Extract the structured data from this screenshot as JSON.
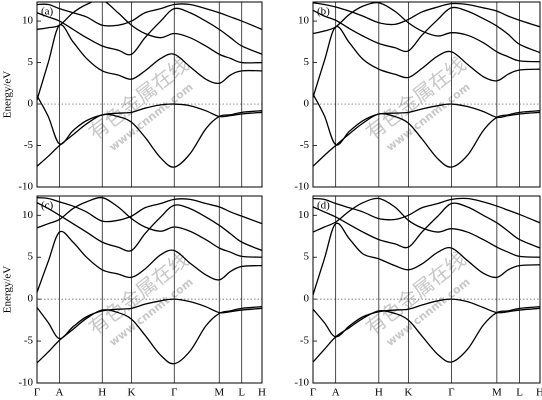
{
  "watermark": [
    "有色金属在线",
    "www.cnnmt.com"
  ],
  "chart_data": [
    {
      "type": "line",
      "title": "(a)",
      "ylabel": "Energy/eV",
      "show_xtick_labels": false,
      "x": [
        0,
        0.05,
        0.1,
        0.16,
        0.22,
        0.29,
        0.36,
        0.42,
        0.48,
        0.55,
        0.61,
        0.68,
        0.75,
        0.81,
        0.86,
        0.91,
        1.0
      ],
      "xlim": [
        0,
        1
      ],
      "ylim": [
        -10,
        12.3
      ],
      "yticks": [
        -10,
        -5,
        0,
        5,
        10
      ],
      "zero_line": true,
      "xticks": [
        {
          "value": 0,
          "label": "Γ"
        },
        {
          "value": 0.1,
          "label": "A"
        },
        {
          "value": 0.29,
          "label": "H"
        },
        {
          "value": 0.42,
          "label": "K"
        },
        {
          "value": 0.61,
          "label": "Γ"
        },
        {
          "value": 0.81,
          "label": "M"
        },
        {
          "value": 0.91,
          "label": "L"
        },
        {
          "value": 1.0,
          "label": "H"
        }
      ],
      "series": [
        {
          "color": "#000000",
          "values": [
            -7.5,
            -6.3,
            -5,
            -3.7,
            -2.4,
            -1.3,
            -1.5,
            -2.2,
            -4,
            -6.5,
            -7.6,
            -6,
            -3,
            -1.5,
            -1.3,
            -1,
            -0.8
          ]
        },
        {
          "color": "#000000",
          "values": [
            1,
            -1.5,
            -4.8,
            -3.2,
            -2,
            -1.3,
            -1.1,
            -1,
            -0.5,
            -0.1,
            0,
            -0.2,
            -0.8,
            -1.5,
            -1.4,
            -1.2,
            -1
          ]
        },
        {
          "color": "#000000",
          "values": [
            0.5,
            5,
            9.5,
            7.5,
            5.5,
            4,
            3.5,
            3,
            4,
            5.5,
            6,
            4.5,
            3,
            2.5,
            3.5,
            4,
            4
          ]
        },
        {
          "color": "#000000",
          "values": [
            9,
            9.2,
            9.5,
            11,
            12,
            12.5,
            11,
            9.5,
            8.5,
            8,
            8.5,
            8,
            7,
            6,
            5.5,
            5,
            5
          ]
        },
        {
          "color": "#000000",
          "values": [
            11,
            10.5,
            10,
            9,
            8,
            7,
            6.5,
            6,
            8,
            10,
            11.5,
            11,
            10,
            9,
            8,
            7,
            6
          ]
        },
        {
          "color": "#000000",
          "values": [
            12,
            12,
            11.5,
            11,
            10.5,
            9.5,
            9.5,
            10,
            11,
            11.5,
            12,
            12,
            11.5,
            11,
            10.5,
            10,
            9
          ]
        }
      ]
    },
    {
      "type": "line",
      "title": "(b)",
      "show_xtick_labels": false,
      "x": [
        0,
        0.05,
        0.1,
        0.16,
        0.22,
        0.29,
        0.36,
        0.42,
        0.48,
        0.55,
        0.61,
        0.68,
        0.75,
        0.81,
        0.86,
        0.91,
        1.0
      ],
      "xlim": [
        0,
        1
      ],
      "ylim": [
        -10,
        12.3
      ],
      "yticks": [
        -10,
        -5,
        0,
        5,
        10
      ],
      "zero_line": true,
      "xticks": [
        {
          "value": 0,
          "label": "Γ"
        },
        {
          "value": 0.1,
          "label": "A"
        },
        {
          "value": 0.29,
          "label": "H"
        },
        {
          "value": 0.42,
          "label": "K"
        },
        {
          "value": 0.61,
          "label": "Γ"
        },
        {
          "value": 0.81,
          "label": "M"
        },
        {
          "value": 0.91,
          "label": "L"
        },
        {
          "value": 1.0,
          "label": "H"
        }
      ],
      "series": [
        {
          "color": "#000000",
          "values": [
            -7.5,
            -6.2,
            -5,
            -3.6,
            -2.3,
            -1.2,
            -1.5,
            -2.3,
            -4.2,
            -6.6,
            -7.6,
            -6.2,
            -3.2,
            -1.6,
            -1.3,
            -1,
            -0.8
          ]
        },
        {
          "color": "#000000",
          "values": [
            1.2,
            -1.4,
            -4.9,
            -3.3,
            -2,
            -1.2,
            -1.1,
            -1,
            -0.6,
            -0.2,
            0,
            -0.3,
            -0.9,
            -1.6,
            -1.4,
            -1.2,
            -1
          ]
        },
        {
          "color": "#000000",
          "values": [
            0.8,
            5.2,
            9.3,
            7.4,
            5.4,
            4.2,
            3.6,
            3.2,
            4.3,
            5.8,
            6.3,
            4.8,
            3.3,
            2.8,
            3.6,
            4.1,
            4.2
          ]
        },
        {
          "color": "#000000",
          "values": [
            8.5,
            8.8,
            9.3,
            10.8,
            11.8,
            12.2,
            11.2,
            9.8,
            8.8,
            8.2,
            8.6,
            8.3,
            7.4,
            6.3,
            5.7,
            5.2,
            5.1
          ]
        },
        {
          "color": "#000000",
          "values": [
            11.3,
            10.6,
            10.1,
            9.1,
            8.2,
            7.3,
            6.8,
            6.4,
            8.3,
            10.2,
            11.6,
            11.2,
            10.3,
            9.4,
            8.4,
            7.2,
            6.2
          ]
        },
        {
          "color": "#000000",
          "values": [
            12.2,
            12,
            11.7,
            11.2,
            10.6,
            9.8,
            9.6,
            10.2,
            11.1,
            11.7,
            12.1,
            12,
            11.6,
            11.2,
            10.6,
            10.1,
            9.3
          ]
        }
      ]
    },
    {
      "type": "line",
      "title": "(c)",
      "ylabel": "Energy/eV",
      "show_xtick_labels": true,
      "x": [
        0,
        0.05,
        0.1,
        0.16,
        0.22,
        0.29,
        0.36,
        0.42,
        0.48,
        0.55,
        0.61,
        0.68,
        0.75,
        0.81,
        0.86,
        0.91,
        1.0
      ],
      "xlim": [
        0,
        1
      ],
      "ylim": [
        -10,
        12.3
      ],
      "yticks": [
        -10,
        -5,
        0,
        5,
        10
      ],
      "zero_line": true,
      "xticks": [
        {
          "value": 0,
          "label": "Γ"
        },
        {
          "value": 0.1,
          "label": "A"
        },
        {
          "value": 0.29,
          "label": "H"
        },
        {
          "value": 0.42,
          "label": "K"
        },
        {
          "value": 0.61,
          "label": "Γ"
        },
        {
          "value": 0.81,
          "label": "M"
        },
        {
          "value": 0.91,
          "label": "L"
        },
        {
          "value": 1.0,
          "label": "H"
        }
      ],
      "series": [
        {
          "color": "#000000",
          "values": [
            -7.6,
            -6.3,
            -4.9,
            -3.6,
            -2.3,
            -1.3,
            -1.6,
            -2.4,
            -4.3,
            -6.7,
            -7.7,
            -6.2,
            -3.2,
            -1.7,
            -1.4,
            -1.1,
            -0.9
          ]
        },
        {
          "color": "#000000",
          "values": [
            -1,
            -2.8,
            -4.7,
            -3.3,
            -2.1,
            -1.4,
            -1.2,
            -1.1,
            -0.6,
            -0.2,
            0,
            -0.3,
            -0.9,
            -1.6,
            -1.5,
            -1.3,
            -1.1
          ]
        },
        {
          "color": "#000000",
          "values": [
            0.8,
            4.5,
            8,
            6.8,
            5,
            3.5,
            3,
            2.6,
            3.6,
            5.3,
            5.8,
            4.3,
            2.9,
            2.3,
            3.3,
            3.9,
            4
          ]
        },
        {
          "color": "#000000",
          "values": [
            8.5,
            9,
            9.5,
            10.8,
            11.6,
            12.1,
            11,
            9.6,
            8.6,
            8.1,
            8.6,
            8.1,
            7.1,
            6.1,
            5.6,
            5.1,
            5
          ]
        },
        {
          "color": "#000000",
          "values": [
            11.5,
            10.8,
            10,
            9,
            8,
            6.8,
            6.2,
            5.8,
            7.8,
            9.8,
            11.2,
            10.8,
            9.8,
            8.8,
            7.8,
            6.8,
            5.8
          ]
        },
        {
          "color": "#000000",
          "values": [
            12.1,
            12,
            11.6,
            11.1,
            10.4,
            9.3,
            9.4,
            9.9,
            10.9,
            11.4,
            11.9,
            11.9,
            11.4,
            11,
            10.4,
            9.9,
            9
          ]
        }
      ]
    },
    {
      "type": "line",
      "title": "(d)",
      "show_xtick_labels": true,
      "x": [
        0,
        0.05,
        0.1,
        0.16,
        0.22,
        0.29,
        0.36,
        0.42,
        0.48,
        0.55,
        0.61,
        0.68,
        0.75,
        0.81,
        0.86,
        0.91,
        1.0
      ],
      "xlim": [
        0,
        1
      ],
      "ylim": [
        -10,
        12.3
      ],
      "yticks": [
        -10,
        -5,
        0,
        5,
        10
      ],
      "zero_line": true,
      "xticks": [
        {
          "value": 0,
          "label": "Γ"
        },
        {
          "value": 0.1,
          "label": "A"
        },
        {
          "value": 0.29,
          "label": "H"
        },
        {
          "value": 0.42,
          "label": "K"
        },
        {
          "value": 0.61,
          "label": "Γ"
        },
        {
          "value": 0.81,
          "label": "M"
        },
        {
          "value": 0.91,
          "label": "L"
        },
        {
          "value": 1.0,
          "label": "H"
        }
      ],
      "series": [
        {
          "color": "#000000",
          "values": [
            -7.5,
            -6,
            -4.5,
            -3.4,
            -2.3,
            -1.4,
            -1.7,
            -2.5,
            -4.4,
            -6.6,
            -7.5,
            -6,
            -3.1,
            -1.6,
            -1.4,
            -1.1,
            -0.9
          ]
        },
        {
          "color": "#000000",
          "values": [
            -1.2,
            -2.8,
            -4.5,
            -3.2,
            -2.1,
            -1.5,
            -1.3,
            -1.2,
            -0.7,
            -0.2,
            0,
            -0.3,
            -1,
            -1.6,
            -1.5,
            -1.3,
            -1.1
          ]
        },
        {
          "color": "#000000",
          "values": [
            0.5,
            4.8,
            9,
            7.2,
            5.4,
            4.8,
            4,
            3.5,
            4.2,
            5.6,
            6.1,
            4.6,
            3.1,
            2.6,
            3.5,
            4,
            4.1
          ]
        },
        {
          "color": "#000000",
          "values": [
            8,
            8.6,
            9.2,
            10.5,
            11.5,
            12,
            11,
            9.4,
            8.5,
            8,
            8.4,
            8,
            7.1,
            6.2,
            5.6,
            5.1,
            5
          ]
        },
        {
          "color": "#000000",
          "values": [
            11,
            10.4,
            9.8,
            8.9,
            8,
            7.1,
            6.6,
            6.2,
            8,
            9.9,
            11.4,
            11,
            10,
            9.1,
            8.1,
            7.1,
            6.1
          ]
        },
        {
          "color": "#000000",
          "values": [
            12,
            11.9,
            11.4,
            10.9,
            10.4,
            9.6,
            9.5,
            10,
            10.9,
            11.4,
            11.9,
            12,
            11.6,
            11.1,
            10.6,
            10.1,
            9.1
          ]
        }
      ]
    }
  ]
}
